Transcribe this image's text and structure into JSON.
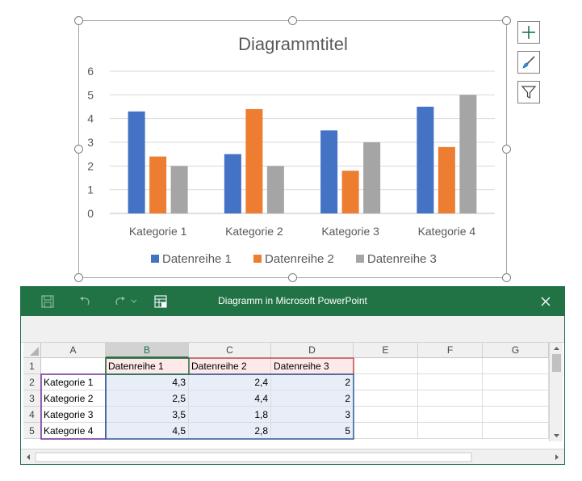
{
  "chart_data": {
    "type": "bar",
    "title": "Diagrammtitel",
    "categories": [
      "Kategorie 1",
      "Kategorie 2",
      "Kategorie 3",
      "Kategorie 4"
    ],
    "series": [
      {
        "name": "Datenreihe 1",
        "values": [
          4.3,
          2.5,
          3.5,
          4.5
        ],
        "color": "#4472c4"
      },
      {
        "name": "Datenreihe 2",
        "values": [
          2.4,
          4.4,
          1.8,
          2.8
        ],
        "color": "#ed7d31"
      },
      {
        "name": "Datenreihe 3",
        "values": [
          2,
          2,
          3,
          5
        ],
        "color": "#a5a5a5"
      }
    ],
    "ylim": [
      0,
      6
    ],
    "yticks": [
      "0",
      "1",
      "2",
      "3",
      "4",
      "5",
      "6"
    ],
    "grid": true,
    "legend": "bottom"
  },
  "side_buttons": {
    "add_icon": "plus-icon",
    "style_icon": "paintbrush-icon",
    "filter_icon": "funnel-icon"
  },
  "excel": {
    "title": "Diagramm in Microsoft PowerPoint",
    "toolbar_icons": [
      "save-icon",
      "undo-icon",
      "redo-icon",
      "edit-data-icon"
    ],
    "close_icon": "close-icon",
    "accent": "#217346",
    "columns": [
      "A",
      "B",
      "C",
      "D",
      "E",
      "F",
      "G"
    ],
    "rows": [
      "1",
      "2",
      "3",
      "4",
      "5"
    ],
    "cells": [
      [
        "",
        "Datenreihe 1",
        "Datenreihe 2",
        "Datenreihe 3"
      ],
      [
        "Kategorie 1",
        "4,3",
        "2,4",
        "2"
      ],
      [
        "Kategorie 2",
        "2,5",
        "4,4",
        "2"
      ],
      [
        "Kategorie 3",
        "3,5",
        "1,8",
        "3"
      ],
      [
        "Kategorie 4",
        "4,5",
        "2,8",
        "5"
      ]
    ]
  }
}
